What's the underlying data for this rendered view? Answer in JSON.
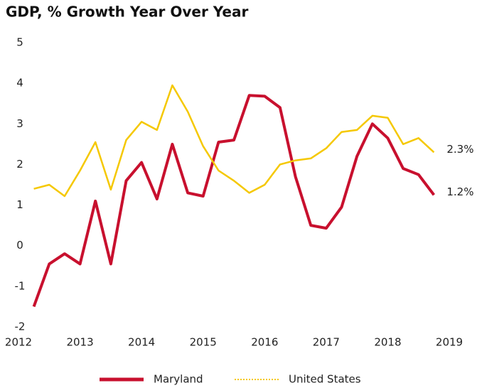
{
  "chart_data": {
    "type": "line",
    "title": "GDP, % Growth Year Over Year",
    "x": [
      2012.25,
      2012.5,
      2012.75,
      2013,
      2013.25,
      2013.5,
      2013.75,
      2014,
      2014.25,
      2014.5,
      2014.75,
      2015,
      2015.25,
      2015.5,
      2015.75,
      2016,
      2016.25,
      2016.5,
      2016.75,
      2017,
      2017.25,
      2017.5,
      2017.75,
      2018,
      2018.25,
      2018.5,
      2018.75
    ],
    "series": [
      {
        "name": "Maryland",
        "color": "#c8102e",
        "values": [
          -1.5,
          -0.45,
          -0.2,
          -0.45,
          1.1,
          -0.45,
          1.6,
          2.05,
          1.15,
          2.5,
          1.3,
          1.22,
          2.55,
          2.6,
          3.7,
          3.68,
          3.4,
          1.7,
          0.5,
          0.43,
          0.95,
          2.2,
          3.0,
          2.65,
          1.9,
          1.75,
          1.25
        ],
        "value_labels": [
          null,
          null,
          null,
          null,
          null,
          null,
          null,
          null,
          null,
          null,
          null,
          null,
          null,
          null,
          null,
          null,
          null,
          null,
          null,
          null,
          null,
          null,
          null,
          null,
          null,
          null,
          "1.2%"
        ]
      },
      {
        "name": "United States",
        "color": "#f5c800",
        "values": [
          1.4,
          1.5,
          1.22,
          1.85,
          2.55,
          1.38,
          2.6,
          3.05,
          2.85,
          3.95,
          3.3,
          2.45,
          1.85,
          1.6,
          1.3,
          1.5,
          2.0,
          2.1,
          2.15,
          2.4,
          2.8,
          2.85,
          3.2,
          3.15,
          2.5,
          2.65,
          2.3
        ],
        "value_labels": [
          null,
          null,
          null,
          null,
          null,
          null,
          null,
          null,
          null,
          null,
          null,
          null,
          null,
          null,
          null,
          null,
          null,
          null,
          null,
          null,
          null,
          null,
          null,
          null,
          null,
          null,
          "2.3%"
        ]
      }
    ],
    "xlim": [
      2012,
      2019
    ],
    "xticks": [
      2012,
      2013,
      2014,
      2015,
      2016,
      2017,
      2018,
      2019
    ],
    "ylim": [
      -2,
      5
    ],
    "yticks": [
      -2,
      -1,
      0,
      1,
      2,
      3,
      4,
      5
    ],
    "legend": "bottom"
  }
}
